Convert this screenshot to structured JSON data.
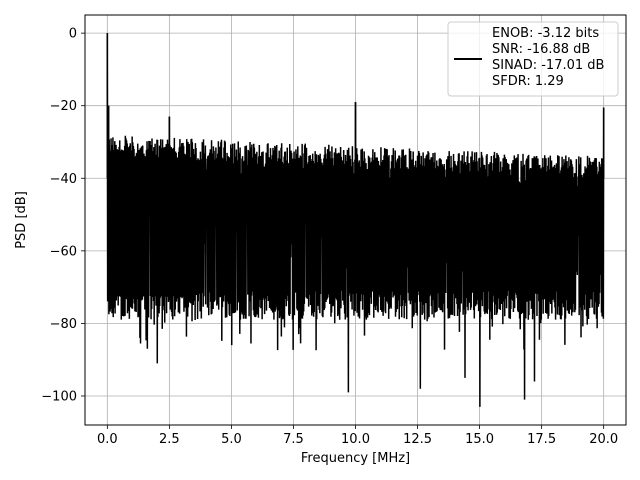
{
  "chart_data": {
    "type": "line",
    "title": "",
    "xlabel": "Frequency [MHz]",
    "ylabel": "PSD [dB]",
    "xlim": [
      -0.9,
      20.9
    ],
    "ylim": [
      -108,
      5
    ],
    "grid": true,
    "x_ticks": [
      0.0,
      2.5,
      5.0,
      7.5,
      10.0,
      12.5,
      15.0,
      17.5,
      20.0
    ],
    "x_tick_labels": [
      "0.0",
      "2.5",
      "5.0",
      "7.5",
      "10.0",
      "12.5",
      "15.0",
      "17.5",
      "20.0"
    ],
    "y_ticks": [
      0,
      -20,
      -40,
      -60,
      -80,
      -100
    ],
    "y_tick_labels": [
      "0",
      "−20",
      "−40",
      "−60",
      "−80",
      "−100"
    ],
    "legend_location": "top-right",
    "legend_lines": [
      "ENOB: -3.12 bits",
      "SNR: -16.88 dB",
      "SINAD: -17.01 dB",
      "SFDR: 1.29"
    ],
    "series": [
      {
        "color": "#000000",
        "noise_floor": {
          "x_range": [
            0.0,
            20.0
          ],
          "upper_envelope_start": -28,
          "upper_envelope_end": -34,
          "lower_typical": -75
        },
        "spurs": [
          {
            "x": 0.0,
            "y": 0
          },
          {
            "x": 0.05,
            "y": -20
          },
          {
            "x": 2.5,
            "y": -23
          },
          {
            "x": 10.0,
            "y": -19
          },
          {
            "x": 20.0,
            "y": -20.5
          }
        ],
        "deep_minima": [
          {
            "x": 2.0,
            "y": -91
          },
          {
            "x": 9.7,
            "y": -99
          },
          {
            "x": 12.6,
            "y": -98
          },
          {
            "x": 15.0,
            "y": -103
          },
          {
            "x": 16.8,
            "y": -101
          },
          {
            "x": 14.4,
            "y": -95
          },
          {
            "x": 17.2,
            "y": -96
          },
          {
            "x": 5.0,
            "y": -86
          },
          {
            "x": 1.3,
            "y": -84
          }
        ]
      }
    ]
  }
}
